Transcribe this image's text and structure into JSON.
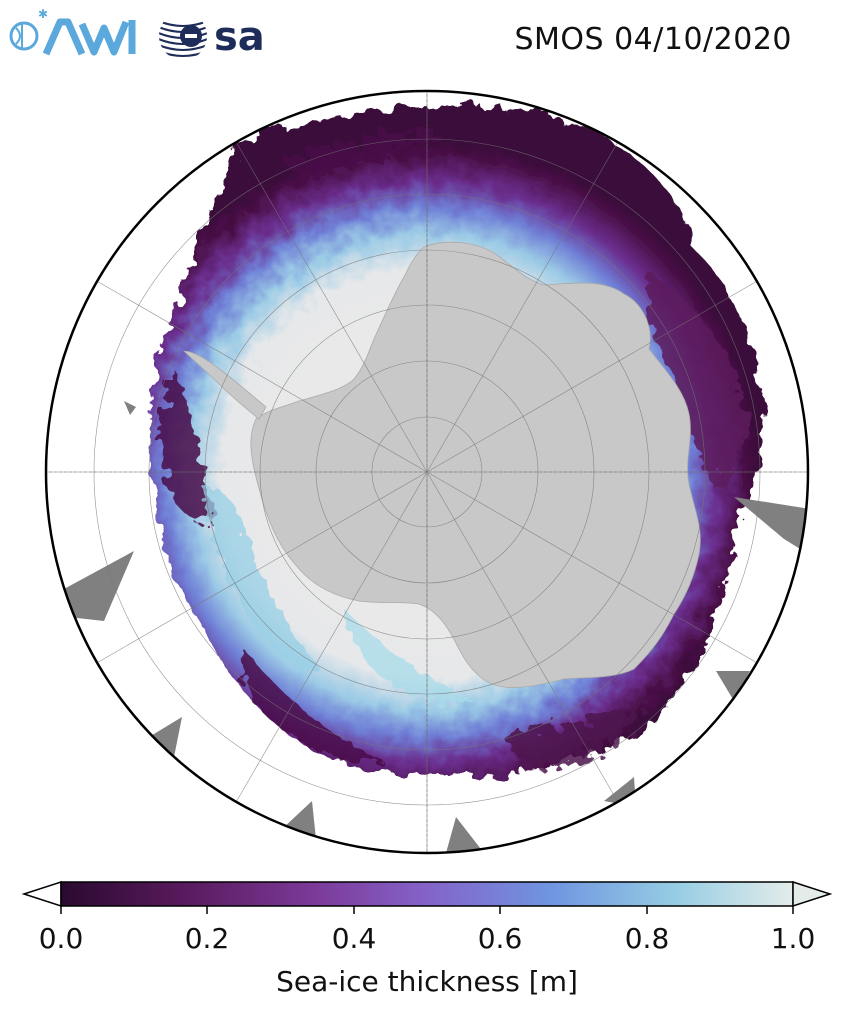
{
  "header": {
    "awi_logo": "AWI",
    "esa_logo": "esa",
    "title": "SMOS 04/10/2020"
  },
  "map": {
    "projection": "south-polar-stereographic",
    "land_color": "#c8c8c8",
    "ocean_color": "#ffffff",
    "missing_data_color": "#808080",
    "ice_thin_color": "#3d0a3c",
    "ice_thick_color": "#e9e9e9",
    "grid": true
  },
  "colorbar": {
    "colors": [
      "#2a0a2e",
      "#5a1a5e",
      "#7c3b9a",
      "#8463c9",
      "#6f95e0",
      "#96cde3",
      "#e4ecea"
    ],
    "ticks": [
      "0.0",
      "0.2",
      "0.4",
      "0.6",
      "0.8",
      "1.0"
    ],
    "range": [
      0.0,
      1.0
    ],
    "extend": "both",
    "label": "Sea-ice thickness [m]"
  }
}
